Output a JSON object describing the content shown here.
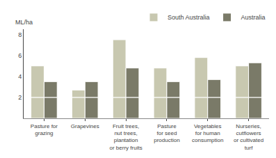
{
  "chart_data": {
    "type": "bar",
    "stacked": true,
    "ylabel": "ML/ha",
    "categories": [
      "Pasture for\ngrazing",
      "Grapevines",
      "Fruit trees,\nnut trees,\nplantation\nor berry fruits",
      "Pasture\nfor seed\nproduction",
      "Vegetables\nfor human\nconsumption",
      "Nurseries,\ncutflowers\nor cultivated\nturf"
    ],
    "series": [
      {
        "name": "South Australia",
        "color": "#c8c8b0",
        "bottom": [
          2.0,
          2.0,
          2.0,
          2.0,
          2.0,
          2.0
        ],
        "values": [
          3.0,
          0.7,
          5.5,
          2.8,
          3.8,
          3.0
        ]
      },
      {
        "name": "Australia",
        "color": "#7a7a68",
        "bottom": [
          2.0,
          2.0,
          2.0,
          2.0,
          2.0,
          2.0
        ],
        "values": [
          1.5,
          1.5,
          2.8,
          1.5,
          1.7,
          3.3
        ]
      }
    ],
    "ylim": [
      0,
      8.5
    ],
    "yticks": [
      2,
      4,
      6,
      8
    ],
    "grid": false,
    "legend": "upper right"
  }
}
